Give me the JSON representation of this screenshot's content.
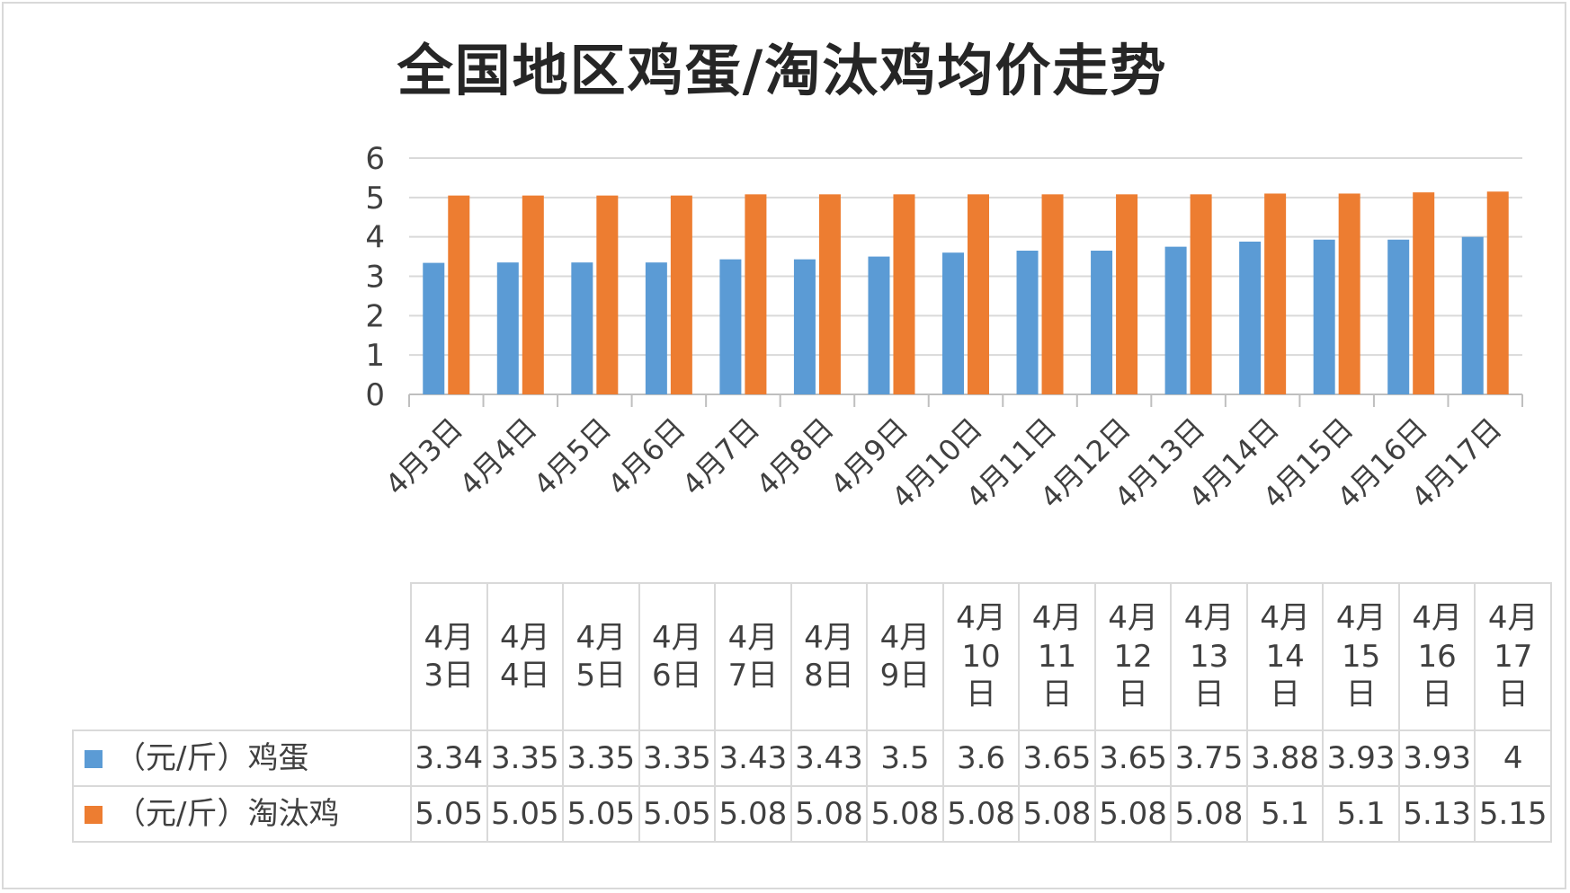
{
  "chart_data": {
    "type": "bar",
    "title": "全国地区鸡蛋/淘汰鸡均价走势",
    "categories": [
      "4月3日",
      "4月4日",
      "4月5日",
      "4月6日",
      "4月7日",
      "4月8日",
      "4月9日",
      "4月10日",
      "4月11日",
      "4月12日",
      "4月13日",
      "4月14日",
      "4月15日",
      "4月16日",
      "4月17日"
    ],
    "series": [
      {
        "name": "（元/斤）鸡蛋",
        "color": "#5b9bd5",
        "values": [
          3.34,
          3.35,
          3.35,
          3.35,
          3.43,
          3.43,
          3.5,
          3.6,
          3.65,
          3.65,
          3.75,
          3.88,
          3.93,
          3.93,
          4
        ]
      },
      {
        "name": "（元/斤）淘汰鸡",
        "color": "#ed7d31",
        "values": [
          5.05,
          5.05,
          5.05,
          5.05,
          5.08,
          5.08,
          5.08,
          5.08,
          5.08,
          5.08,
          5.08,
          5.1,
          5.1,
          5.13,
          5.15
        ]
      }
    ],
    "ylim": [
      0,
      6
    ],
    "yticks": [
      0,
      1,
      2,
      3,
      4,
      5,
      6
    ],
    "grid": true,
    "legend": "data-table",
    "table_values": [
      [
        "3.34",
        "3.35",
        "3.35",
        "3.35",
        "3.43",
        "3.43",
        "3.5",
        "3.6",
        "3.65",
        "3.65",
        "3.75",
        "3.88",
        "3.93",
        "3.93",
        "4"
      ],
      [
        "5.05",
        "5.05",
        "5.05",
        "5.05",
        "5.08",
        "5.08",
        "5.08",
        "5.08",
        "5.08",
        "5.08",
        "5.08",
        "5.1",
        "5.1",
        "5.13",
        "5.15"
      ]
    ]
  },
  "colors": {
    "grid": "#d9d9d9",
    "axis": "#bfbfbf",
    "text": "#404040"
  }
}
